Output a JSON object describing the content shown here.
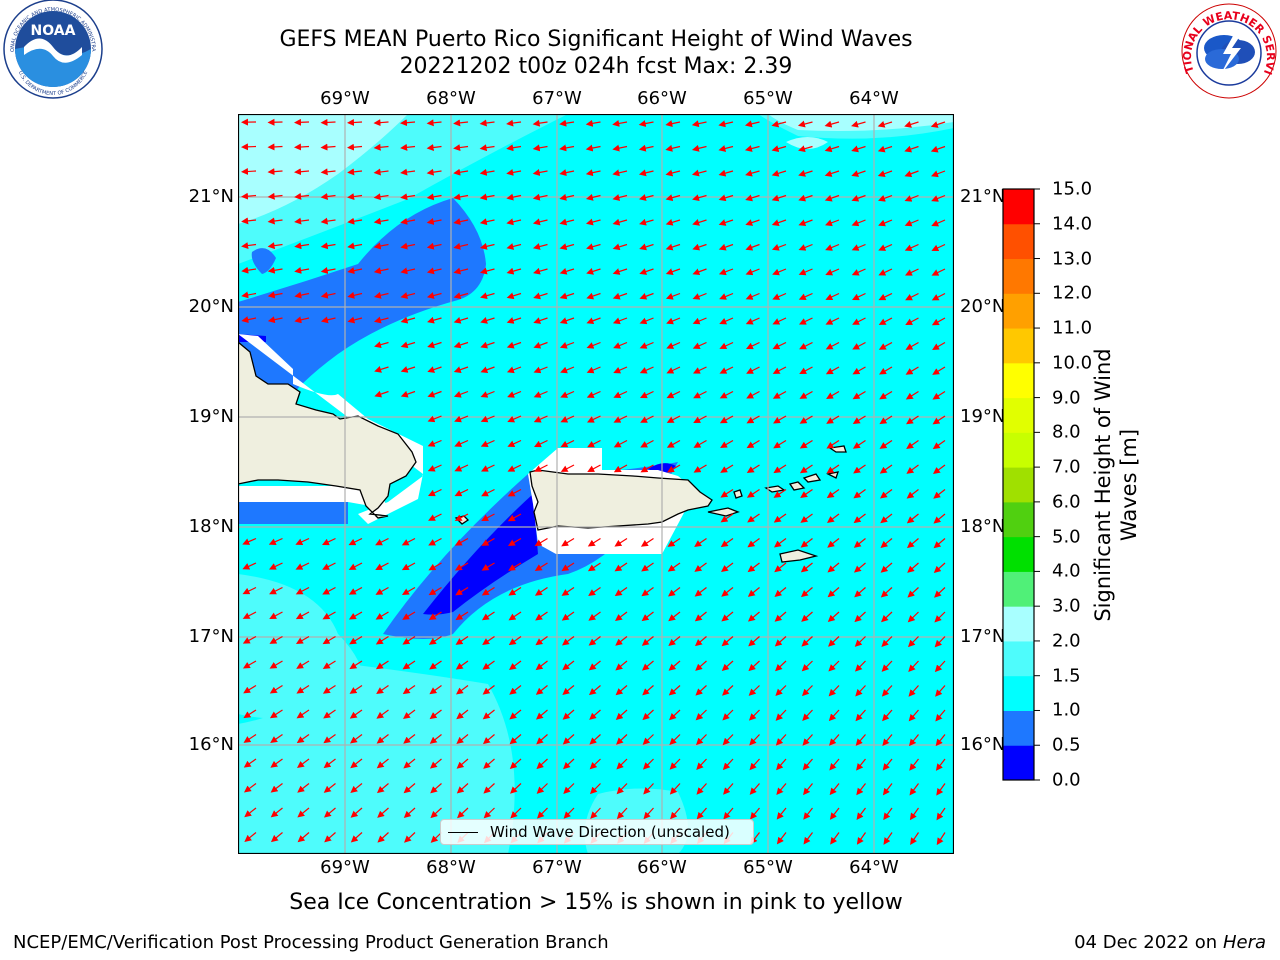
{
  "title": {
    "line1": "GEFS MEAN Puerto Rico Significant Height of Wind Waves",
    "line2": "20221202 t00z 024h fcst   Max: 2.39"
  },
  "logos": {
    "left": {
      "text_top": "NATIONAL OCEANIC AND ATMOSPHERIC ADMINISTRATION",
      "text_bottom": "U.S. DEPARTMENT OF COMMERCE",
      "center": "NOAA"
    },
    "right": {
      "text": "NATIONAL WEATHER SERVICE"
    }
  },
  "map": {
    "lon_labels": [
      "69°W",
      "68°W",
      "67°W",
      "66°W",
      "65°W",
      "64°W"
    ],
    "lat_labels": [
      "21°N",
      "20°N",
      "19°N",
      "18°N",
      "17°N",
      "16°N"
    ],
    "lon_range": [
      -70.0,
      -63.25
    ],
    "lat_range": [
      15.0,
      21.75
    ],
    "grid": true
  },
  "colorbar": {
    "label": "Significant Height of Wind Waves [m]",
    "tick_labels": [
      "0.0",
      "0.5",
      "1.0",
      "1.5",
      "2.0",
      "3.0",
      "4.0",
      "5.0",
      "6.0",
      "7.0",
      "8.0",
      "9.0",
      "10.0",
      "11.0",
      "12.0",
      "13.0",
      "14.0",
      "15.0"
    ],
    "colors": [
      "#0000ff",
      "#1e78ff",
      "#00ffff",
      "#4efcfc",
      "#a8ffff",
      "#50f078",
      "#00e000",
      "#50d010",
      "#a0e000",
      "#c8ff00",
      "#e1ff00",
      "#ffff00",
      "#ffc800",
      "#ffa000",
      "#ff7800",
      "#ff5000",
      "#ff0000"
    ]
  },
  "legend": {
    "label": "Wind Wave Direction (unscaled)"
  },
  "notes": {
    "ice": "Sea Ice Concentration > 15% is shown in pink to yellow"
  },
  "footer": {
    "left": "NCEP/EMC/Verification Post Processing Product Generation Branch",
    "date": "04 Dec 2022 on",
    "host": "Hera"
  }
}
